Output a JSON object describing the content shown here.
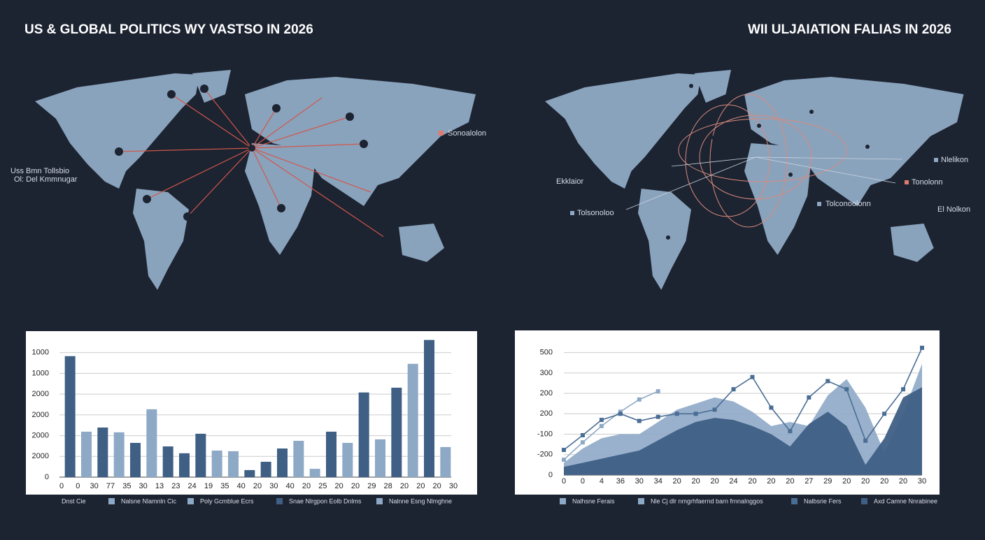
{
  "header": {
    "left_title": "US & GLOBAL POLITICS WY VASTSO IN 2026",
    "right_title": "WII ULJAIATION FALIAS IN 2026"
  },
  "maps": [
    {
      "labels": [
        "Sonoalolon",
        "Uss Bmn Tollsbio",
        "Ol: Del Kmmnugar"
      ]
    },
    {
      "labels": [
        "Nlelikon",
        "Tonolonn",
        "Ekklaior",
        "Tolsonoloo",
        "Tolconoolonn",
        "El Nolkon"
      ]
    }
  ],
  "chart_data": [
    {
      "type": "bar",
      "categories": [
        "0",
        "0",
        "30",
        "77",
        "35",
        "30",
        "13",
        "23",
        "24",
        "19",
        "35",
        "40",
        "20",
        "30",
        "40",
        "20",
        "25",
        "20",
        "20",
        "29",
        "28",
        "20",
        "20",
        "20",
        "30"
      ],
      "values": [
        583,
        219,
        239,
        216,
        165,
        327,
        148,
        115,
        209,
        128,
        125,
        34,
        74,
        138,
        175,
        40,
        219,
        165,
        408,
        182,
        431,
        546,
        661,
        145,
        null
      ],
      "colors": [
        "#3f5f85",
        "#8ea9c6",
        "#3f5f85",
        "#8ea9c6",
        "#3f5f85",
        "#8ea9c6",
        "#3f5f85",
        "#3f5f85",
        "#3f5f85",
        "#8ea9c6",
        "#8ea9c6",
        "#3f5f85",
        "#3f5f85",
        "#3f5f85",
        "#8ea9c6",
        "#8ea9c6",
        "#3f5f85",
        "#8ea9c6",
        "#3f5f85",
        "#8ea9c6",
        "#3f5f85",
        "#8ea9c6",
        "#3f5f85",
        "#8ea9c6",
        null
      ],
      "ylim": [
        0,
        680
      ],
      "yticks": [
        0,
        {
          "value": 100,
          "label": "2000"
        },
        {
          "value": 200,
          "label": "2000"
        },
        {
          "value": 300,
          "label": "2000"
        },
        {
          "value": 400,
          "label": "2000"
        },
        {
          "value": 500,
          "label": "1000"
        },
        {
          "value": 600,
          "label": "1000"
        }
      ],
      "grid": true,
      "legend": [
        {
          "name": "Dnst Cie"
        },
        {
          "name": "Nalsne Nlamnln Cic",
          "color": "#8ea9c6"
        },
        {
          "name": "Poly Gcmblue Ecrs",
          "color": "#8ea9c6"
        },
        {
          "name": "Snae Nlrgpon Eolb Dnlms",
          "color": "#3f5f85"
        },
        {
          "name": "Nalnne Esng Nlmghne",
          "color": "#8ea9c6"
        }
      ]
    },
    {
      "type": "area",
      "categories": [
        "0",
        "0",
        "4",
        "36",
        "30",
        "34",
        "20",
        "20",
        "20",
        "24",
        "20",
        "20",
        "20",
        "27",
        "29",
        "20",
        "20",
        "20",
        "20",
        "30"
      ],
      "series": [
        {
          "name": "Nalhsne Ferais",
          "color": "#8ea9c6",
          "kind": "area",
          "values": [
            60,
            130,
            180,
            200,
            200,
            260,
            320,
            350,
            380,
            360,
            310,
            240,
            260,
            240,
            390,
            470,
            330,
            110,
            300,
            545
          ]
        },
        {
          "name": "Axd Camne Nnrabinee",
          "color": "#3f5f85",
          "kind": "area",
          "values": [
            40,
            60,
            80,
            100,
            120,
            170,
            220,
            260,
            280,
            270,
            240,
            200,
            140,
            250,
            310,
            240,
            50,
            180,
            380,
            430
          ]
        },
        {
          "name": "Nle Cj dlr nmgrhfaernd barn frnnalnggos",
          "color": "#8ea9c6",
          "kind": "line",
          "values": [
            75,
            160,
            240,
            310,
            370,
            410,
            null,
            null,
            null,
            null,
            null,
            null,
            null,
            null,
            null,
            null,
            null,
            null,
            null,
            null
          ]
        },
        {
          "name": "Nalbsrie Fers",
          "color": "#4a6d94",
          "kind": "line",
          "values": [
            123,
            195,
            270,
            300,
            265,
            285,
            300,
            300,
            320,
            420,
            480,
            330,
            215,
            380,
            460,
            420,
            168,
            300,
            420,
            623
          ]
        }
      ],
      "ylim": [
        0,
        650
      ],
      "yticks": [
        0,
        {
          "value": 100,
          "label": "-200"
        },
        {
          "value": 200,
          "label": "-100"
        },
        {
          "value": 300,
          "label": "200"
        },
        {
          "value": 400,
          "label": "200"
        },
        {
          "value": 500,
          "label": "300"
        },
        {
          "value": 600,
          "label": "500"
        }
      ],
      "grid": true
    }
  ]
}
